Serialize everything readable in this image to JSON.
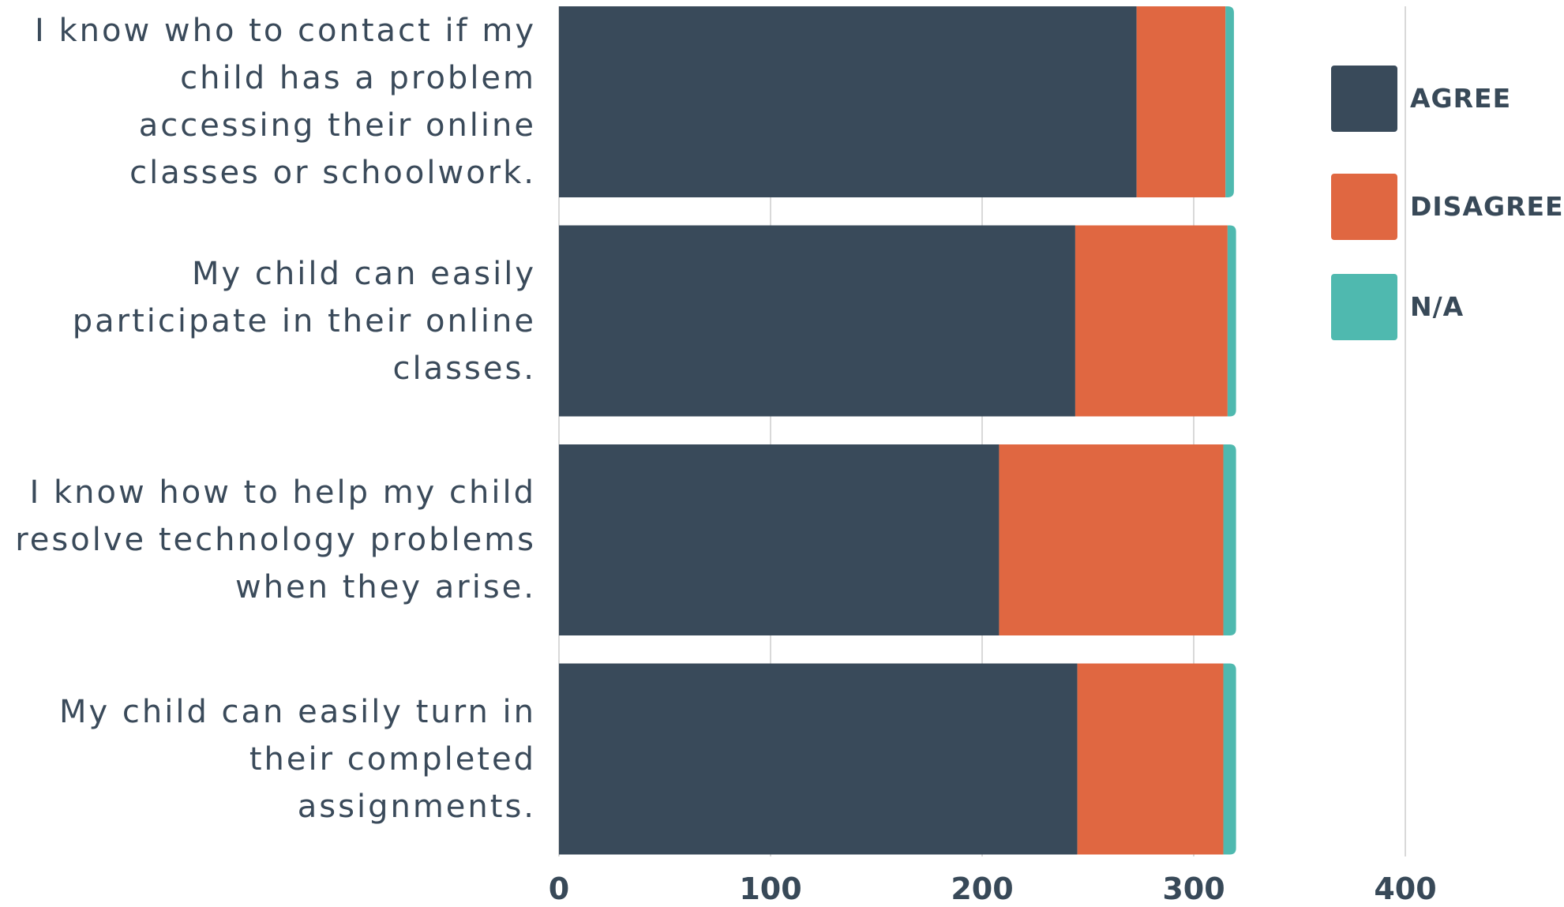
{
  "chart_data": {
    "type": "bar",
    "orientation": "horizontal",
    "stacked": true,
    "categories": [
      "I know who to contact if my\nchild has a problem\naccessing their online\nclasses or schoolwork.",
      "My child can easily\nparticipate in their online\nclasses.",
      "I know how to help my child\nresolve technology problems\nwhen they arise.",
      "My child can easily turn in\ntheir completed\nassignments."
    ],
    "series": [
      {
        "name": "AGREE",
        "color": "#394a5a",
        "values": [
          273,
          244,
          208,
          245
        ]
      },
      {
        "name": "DISAGREE",
        "color": "#e06741",
        "values": [
          42,
          72,
          106,
          69
        ]
      },
      {
        "name": "N/A",
        "color": "#4fb9af",
        "values": [
          4,
          4,
          6,
          6
        ]
      }
    ],
    "xlim": [
      0,
      400
    ],
    "xticks": [
      "0",
      "100",
      "200",
      "300",
      "400"
    ],
    "xtick_values": [
      0,
      100,
      200,
      300,
      400
    ],
    "grid": true,
    "legend_position": "top-right"
  }
}
